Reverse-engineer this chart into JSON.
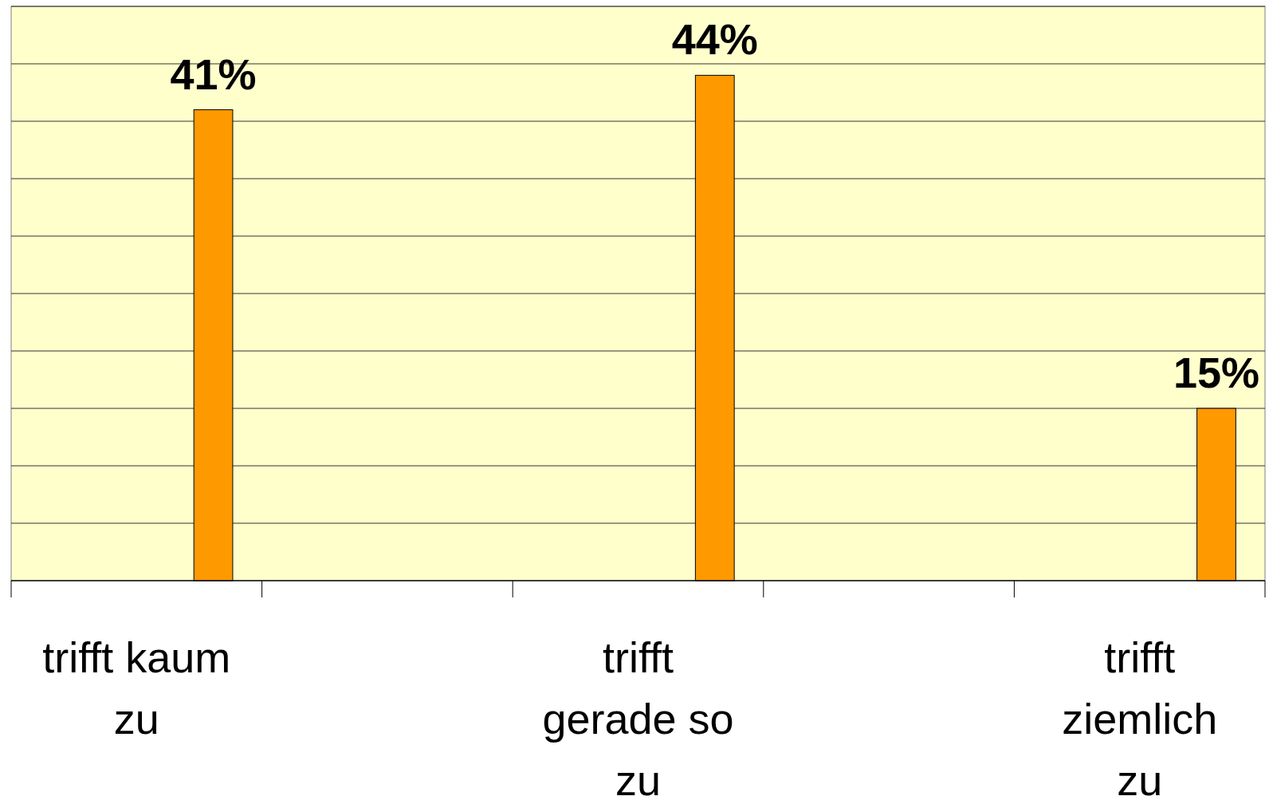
{
  "chart_data": {
    "type": "bar",
    "categories": [
      "trifft kaum zu",
      null,
      "trifft gerade so zu",
      null,
      "trifft ziemlich zu"
    ],
    "values": [
      41,
      null,
      44,
      null,
      15
    ],
    "color": "#ff9900",
    "value_labels": [
      "41%",
      null,
      "44%",
      null,
      "15%"
    ],
    "ylim": [
      0,
      50
    ],
    "yticks": [
      {
        "value": 0,
        "label": null
      },
      {
        "value": 5,
        "label": null
      },
      {
        "value": 10,
        "label": null
      },
      {
        "value": 15,
        "label": null
      },
      {
        "value": 20,
        "label": null
      },
      {
        "value": 25,
        "label": null
      },
      {
        "value": 30,
        "label": null
      },
      {
        "value": 35,
        "label": null
      },
      {
        "value": 40,
        "label": null
      },
      {
        "value": 45,
        "label": null
      },
      {
        "value": 50,
        "label": null
      }
    ],
    "grid": "y",
    "tick_labels": "x"
  }
}
